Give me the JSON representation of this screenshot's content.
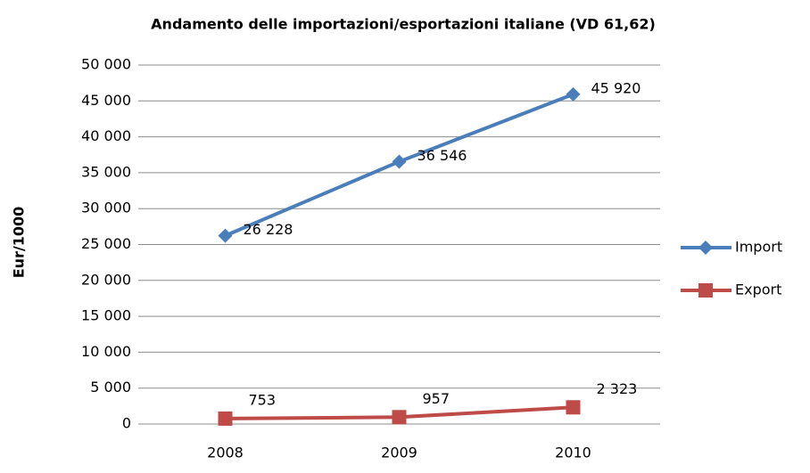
{
  "chart_data": {
    "type": "line",
    "title": "Andamento delle importazioni/esportazioni italiane (VD 61,62)",
    "ylabel": "Eur/1000",
    "categories": [
      "2008",
      "2009",
      "2010"
    ],
    "series": [
      {
        "name": "Import",
        "color": "#4a7ebb",
        "marker": "diamond",
        "values": [
          26228,
          36546,
          45920
        ],
        "value_labels": [
          "26 228",
          "36 546",
          "45 920"
        ]
      },
      {
        "name": "Export",
        "color": "#be4b48",
        "marker": "square",
        "values": [
          753,
          957,
          2323
        ],
        "value_labels": [
          "753",
          "957",
          "2 323"
        ]
      }
    ],
    "ylim": [
      0,
      50000
    ],
    "yticks": [
      0,
      {
        "value": 5000,
        "label": "5 000"
      },
      {
        "value": 10000,
        "label": "10 000"
      },
      {
        "value": 15000,
        "label": "15 000"
      },
      {
        "value": 20000,
        "label": "20 000"
      },
      {
        "value": 25000,
        "label": "25 000"
      },
      {
        "value": 30000,
        "label": "30 000"
      },
      {
        "value": 35000,
        "label": "35 000"
      },
      {
        "value": 40000,
        "label": "40 000"
      },
      {
        "value": 45000,
        "label": "45 000"
      },
      {
        "value": 50000,
        "label": "50 000"
      }
    ],
    "grid": true,
    "legend": "right"
  }
}
